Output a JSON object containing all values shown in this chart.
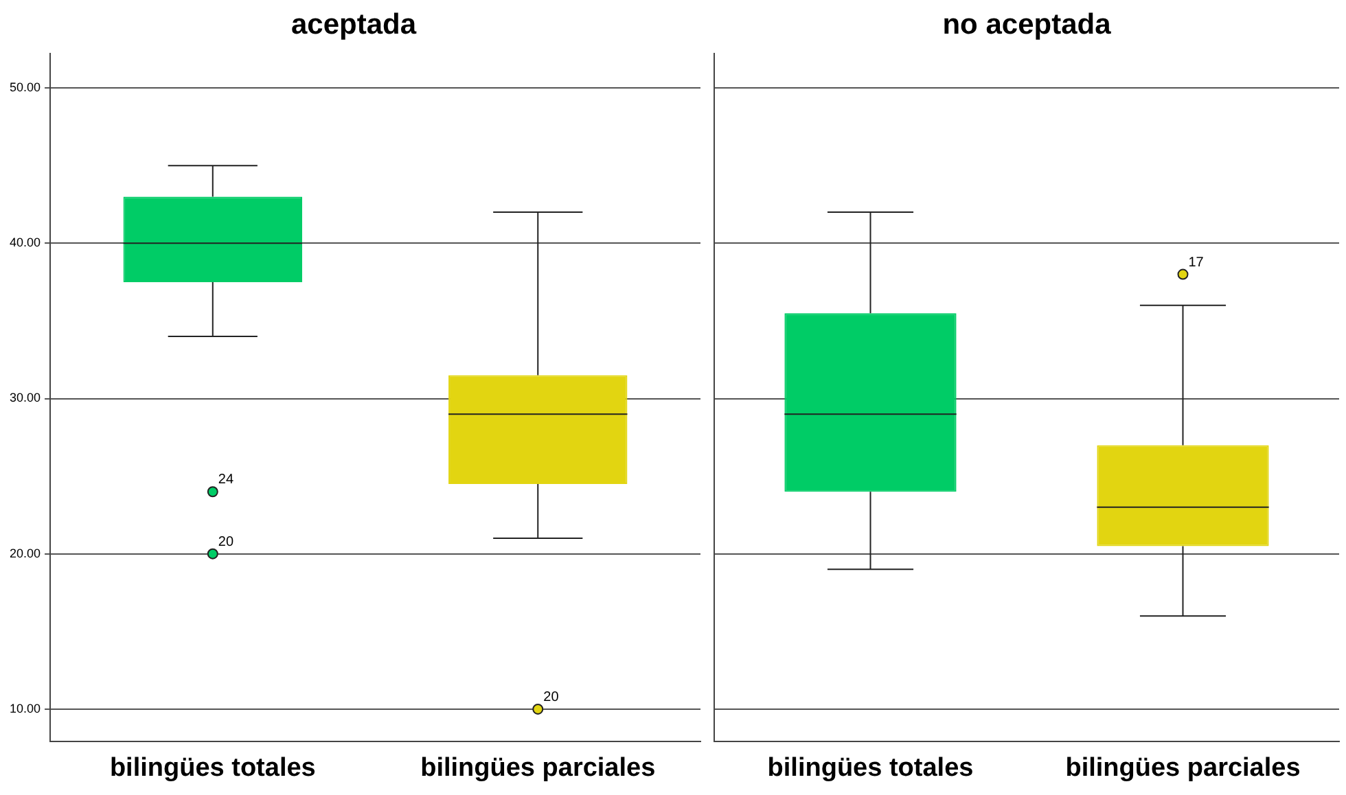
{
  "chart_data": [
    {
      "type": "box",
      "title": "aceptada",
      "categories": [
        "bilingües totales",
        "bilingües parciales"
      ],
      "colors": [
        "#00cc66",
        "#e2d511"
      ],
      "boxes": [
        {
          "low": 34,
          "q1": 37.5,
          "median": 40,
          "q3": 43,
          "high": 45,
          "outliers": [
            24,
            20
          ]
        },
        {
          "low": 21,
          "q1": 24.5,
          "median": 29,
          "q3": 31.5,
          "high": 42,
          "outliers": [
            10
          ]
        }
      ],
      "ylim": [
        7.9,
        52.2
      ],
      "yticks": [
        {
          "value": 10,
          "label": "10.00"
        },
        {
          "value": 20,
          "label": "20.00"
        },
        {
          "value": 30,
          "label": "30.00"
        },
        {
          "value": 40,
          "label": "40.00"
        },
        {
          "value": 50,
          "label": "50.00"
        }
      ],
      "grid": "y",
      "legend": false,
      "annotations": [
        "24",
        "20",
        "20"
      ]
    },
    {
      "type": "box",
      "title": "no aceptada",
      "categories": [
        "bilingües totales",
        "bilingües parciales"
      ],
      "colors": [
        "#00cc66",
        "#e2d511"
      ],
      "boxes": [
        {
          "low": 19,
          "q1": 24,
          "median": 29,
          "q3": 35.5,
          "high": 42
        },
        {
          "low": 16,
          "q1": 20.5,
          "median": 23,
          "q3": 27,
          "high": 36,
          "outliers": [
            38
          ]
        }
      ],
      "ylim": [
        7.9,
        52.2
      ],
      "yticks": [
        {
          "value": 10,
          "label": null
        },
        {
          "value": 20,
          "label": null
        },
        {
          "value": 30,
          "label": null
        },
        {
          "value": 40,
          "label": null
        },
        {
          "value": 50,
          "label": null
        }
      ],
      "grid": "y",
      "legend": false,
      "tick_labels": "x",
      "annotations": [
        "17"
      ]
    }
  ]
}
